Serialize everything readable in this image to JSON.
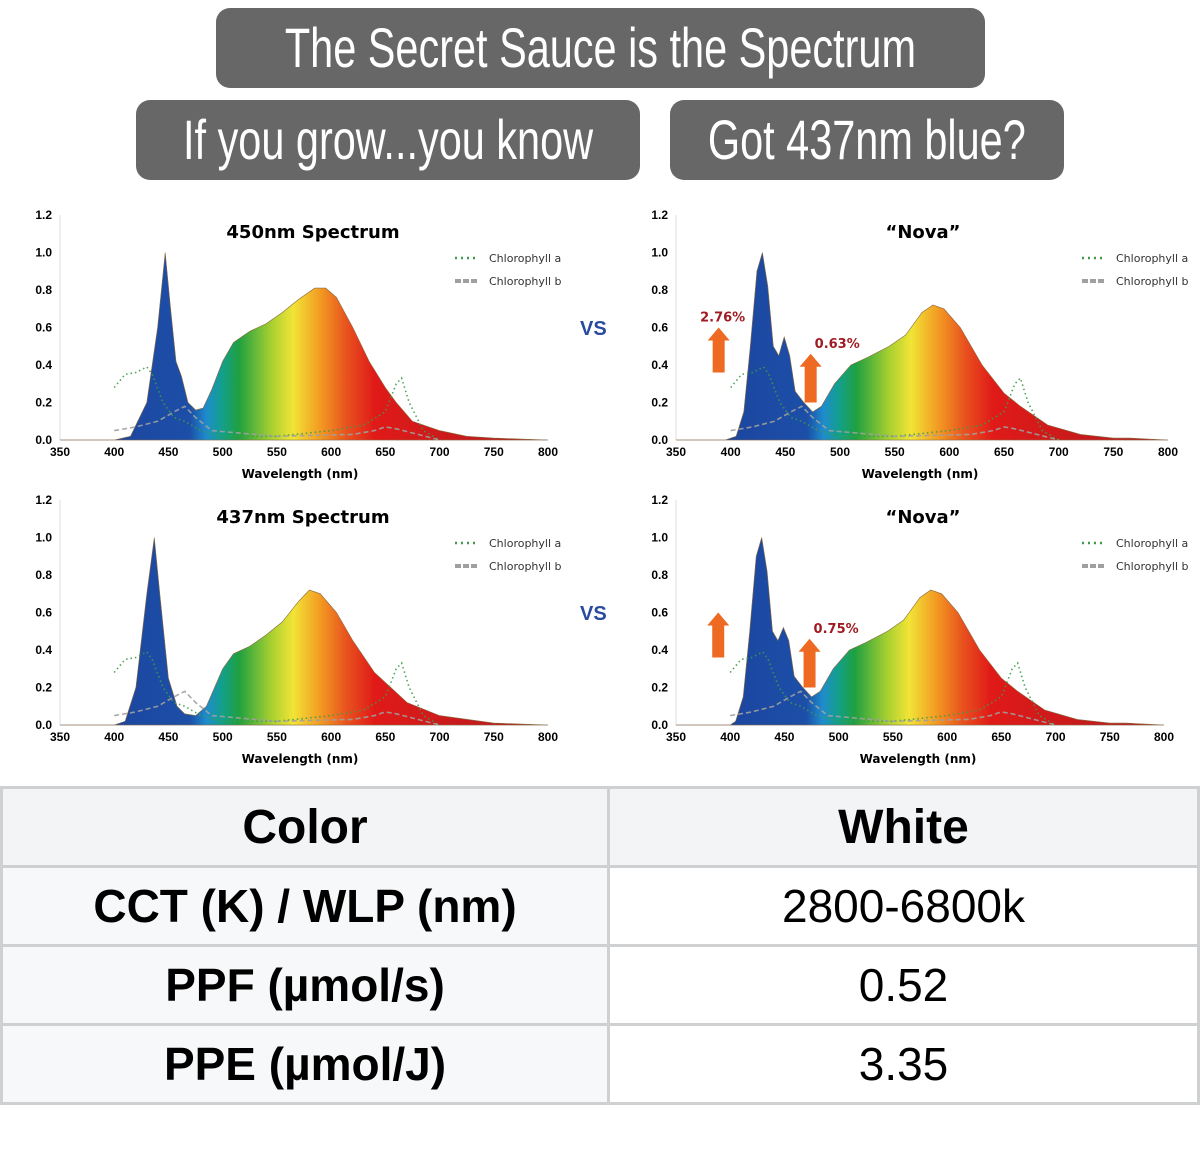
{
  "vs_label": "VS",
  "caption": {
    "line1": "The Secret Sauce is the Spectrum",
    "line2": "If you grow...you know",
    "line3": "Got 437nm blue?"
  },
  "chart_data": [
    {
      "type": "area",
      "title": "450nm Spectrum",
      "xlabel": "Wavelength (nm)",
      "xlim": [
        350,
        800
      ],
      "ylim": [
        0,
        1.2
      ],
      "xticks": [
        350,
        400,
        450,
        500,
        550,
        600,
        650,
        700,
        750,
        800
      ],
      "yticks": [
        "0.0",
        "0.2",
        "0.4",
        "0.6",
        "0.8",
        "1.0",
        "1.2"
      ],
      "legend": {
        "placement": "top-right",
        "entries": [
          "Chlorophyll a",
          "Chlorophyll b"
        ]
      },
      "spectrum": [
        [
          350,
          0
        ],
        [
          400,
          0
        ],
        [
          415,
          0.02
        ],
        [
          430,
          0.2
        ],
        [
          440,
          0.6
        ],
        [
          447,
          1.0
        ],
        [
          452,
          0.7
        ],
        [
          457,
          0.42
        ],
        [
          462,
          0.34
        ],
        [
          468,
          0.2
        ],
        [
          475,
          0.16
        ],
        [
          482,
          0.17
        ],
        [
          490,
          0.27
        ],
        [
          500,
          0.42
        ],
        [
          510,
          0.52
        ],
        [
          525,
          0.58
        ],
        [
          540,
          0.62
        ],
        [
          555,
          0.68
        ],
        [
          570,
          0.75
        ],
        [
          585,
          0.81
        ],
        [
          595,
          0.81
        ],
        [
          605,
          0.76
        ],
        [
          620,
          0.6
        ],
        [
          635,
          0.42
        ],
        [
          650,
          0.28
        ],
        [
          660,
          0.2
        ],
        [
          675,
          0.1
        ],
        [
          700,
          0.05
        ],
        [
          725,
          0.02
        ],
        [
          750,
          0.01
        ],
        [
          800,
          0
        ]
      ],
      "annotations": []
    },
    {
      "type": "area",
      "title": "“Nova”",
      "xlabel": "Wavelength (nm)",
      "xlim": [
        350,
        800
      ],
      "ylim": [
        0,
        1.2
      ],
      "xticks": [
        350,
        400,
        450,
        500,
        550,
        600,
        650,
        700,
        750,
        800
      ],
      "yticks": [
        "0.0",
        "0.2",
        "0.4",
        "0.6",
        "0.8",
        "1.0",
        "1.2"
      ],
      "legend": {
        "placement": "top-right",
        "entries": [
          "Chlorophyll a",
          "Chlorophyll b"
        ]
      },
      "spectrum": [
        [
          350,
          0
        ],
        [
          395,
          0
        ],
        [
          405,
          0.02
        ],
        [
          412,
          0.15
        ],
        [
          418,
          0.5
        ],
        [
          424,
          0.9
        ],
        [
          429,
          1.0
        ],
        [
          434,
          0.82
        ],
        [
          439,
          0.5
        ],
        [
          444,
          0.45
        ],
        [
          449,
          0.55
        ],
        [
          454,
          0.45
        ],
        [
          459,
          0.26
        ],
        [
          467,
          0.2
        ],
        [
          475,
          0.15
        ],
        [
          483,
          0.18
        ],
        [
          495,
          0.3
        ],
        [
          510,
          0.4
        ],
        [
          525,
          0.44
        ],
        [
          545,
          0.5
        ],
        [
          560,
          0.56
        ],
        [
          575,
          0.68
        ],
        [
          585,
          0.72
        ],
        [
          595,
          0.7
        ],
        [
          610,
          0.6
        ],
        [
          630,
          0.4
        ],
        [
          650,
          0.25
        ],
        [
          665,
          0.18
        ],
        [
          690,
          0.08
        ],
        [
          720,
          0.03
        ],
        [
          750,
          0.01
        ],
        [
          765,
          0.01
        ],
        [
          800,
          0
        ]
      ],
      "annotations": [
        {
          "text": "2.76%",
          "x": 400
        },
        {
          "text": "0.63%",
          "x": 475
        }
      ]
    },
    {
      "type": "area",
      "title": "437nm Spectrum",
      "xlabel": "Wavelength (nm)",
      "xlim": [
        350,
        800
      ],
      "ylim": [
        0,
        1.2
      ],
      "xticks": [
        350,
        400,
        450,
        500,
        550,
        600,
        650,
        700,
        750,
        800
      ],
      "yticks": [
        "0.0",
        "0.2",
        "0.4",
        "0.6",
        "0.8",
        "1.0",
        "1.2"
      ],
      "legend": {
        "placement": "top-right",
        "entries": [
          "Chlorophyll a",
          "Chlorophyll b"
        ]
      },
      "spectrum": [
        [
          350,
          0
        ],
        [
          400,
          0
        ],
        [
          410,
          0.02
        ],
        [
          420,
          0.2
        ],
        [
          430,
          0.7
        ],
        [
          437,
          1.0
        ],
        [
          442,
          0.7
        ],
        [
          450,
          0.25
        ],
        [
          458,
          0.1
        ],
        [
          465,
          0.06
        ],
        [
          475,
          0.05
        ],
        [
          485,
          0.1
        ],
        [
          500,
          0.3
        ],
        [
          510,
          0.38
        ],
        [
          525,
          0.42
        ],
        [
          540,
          0.48
        ],
        [
          555,
          0.55
        ],
        [
          570,
          0.66
        ],
        [
          580,
          0.72
        ],
        [
          590,
          0.7
        ],
        [
          605,
          0.6
        ],
        [
          620,
          0.45
        ],
        [
          640,
          0.28
        ],
        [
          655,
          0.2
        ],
        [
          670,
          0.12
        ],
        [
          700,
          0.05
        ],
        [
          750,
          0.01
        ],
        [
          800,
          0
        ]
      ],
      "annotations": []
    },
    {
      "type": "area",
      "title": "“Nova”",
      "xlabel": "Wavelength (nm)",
      "xlim": [
        350,
        800
      ],
      "ylim": [
        0,
        1.2
      ],
      "xticks": [
        350,
        400,
        450,
        500,
        550,
        600,
        650,
        700,
        750,
        800
      ],
      "yticks": [
        "0.0",
        "0.2",
        "0.4",
        "0.6",
        "0.8",
        "1.0",
        "1.2"
      ],
      "legend": {
        "placement": "top-right",
        "entries": [
          "Chlorophyll a",
          "Chlorophyll b"
        ]
      },
      "spectrum": [
        [
          350,
          0
        ],
        [
          400,
          0
        ],
        [
          405,
          0.02
        ],
        [
          412,
          0.15
        ],
        [
          418,
          0.5
        ],
        [
          424,
          0.9
        ],
        [
          429,
          1.0
        ],
        [
          434,
          0.82
        ],
        [
          439,
          0.5
        ],
        [
          444,
          0.45
        ],
        [
          449,
          0.52
        ],
        [
          454,
          0.45
        ],
        [
          459,
          0.26
        ],
        [
          467,
          0.2
        ],
        [
          475,
          0.15
        ],
        [
          483,
          0.18
        ],
        [
          495,
          0.3
        ],
        [
          510,
          0.4
        ],
        [
          525,
          0.44
        ],
        [
          545,
          0.5
        ],
        [
          560,
          0.56
        ],
        [
          575,
          0.68
        ],
        [
          585,
          0.72
        ],
        [
          595,
          0.7
        ],
        [
          610,
          0.6
        ],
        [
          630,
          0.4
        ],
        [
          650,
          0.25
        ],
        [
          665,
          0.18
        ],
        [
          690,
          0.08
        ],
        [
          720,
          0.03
        ],
        [
          750,
          0.01
        ],
        [
          765,
          0.01
        ],
        [
          800,
          0
        ]
      ],
      "annotations": [
        {
          "text": "",
          "x": 400
        },
        {
          "text": "0.75%",
          "x": 475
        }
      ]
    }
  ],
  "chlorophyll": {
    "a": [
      [
        400,
        0.28
      ],
      [
        410,
        0.35
      ],
      [
        420,
        0.36
      ],
      [
        430,
        0.39
      ],
      [
        435,
        0.35
      ],
      [
        445,
        0.2
      ],
      [
        455,
        0.12
      ],
      [
        465,
        0.1
      ],
      [
        480,
        0.05
      ],
      [
        500,
        0.02
      ],
      [
        550,
        0.02
      ],
      [
        600,
        0.05
      ],
      [
        630,
        0.08
      ],
      [
        650,
        0.15
      ],
      [
        660,
        0.3
      ],
      [
        665,
        0.33
      ],
      [
        672,
        0.2
      ],
      [
        685,
        0.05
      ],
      [
        700,
        0
      ]
    ],
    "b": [
      [
        400,
        0.05
      ],
      [
        420,
        0.07
      ],
      [
        440,
        0.1
      ],
      [
        455,
        0.15
      ],
      [
        465,
        0.18
      ],
      [
        475,
        0.12
      ],
      [
        490,
        0.05
      ],
      [
        550,
        0.02
      ],
      [
        620,
        0.03
      ],
      [
        640,
        0.05
      ],
      [
        650,
        0.07
      ],
      [
        660,
        0.06
      ],
      [
        680,
        0.03
      ],
      [
        700,
        0
      ]
    ],
    "colors": {
      "a": "#3f9a4a",
      "b": "#a0a0a0"
    }
  },
  "colors": {
    "vs": "#2a4aa0",
    "annotation": "#a01c22",
    "arrow": "#ee6a22"
  },
  "table": {
    "header": [
      "Color",
      "White"
    ],
    "rows": [
      [
        "CCT (K) / WLP (nm)",
        "2800-6800k"
      ],
      [
        "PPF (µmol/s)",
        "0.52"
      ],
      [
        "PPE (µmol/J)",
        "3.35"
      ]
    ]
  }
}
